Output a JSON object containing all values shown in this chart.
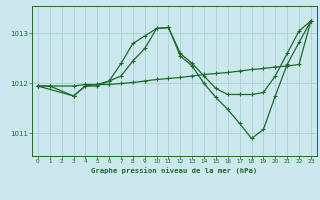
{
  "title": "Graphe pression niveau de la mer (hPa)",
  "background_color": "#cce8ec",
  "grid_color": "#aad0d8",
  "line_color": "#1a6b2a",
  "xlim": [
    -0.5,
    23.5
  ],
  "ylim": [
    1010.55,
    1013.55
  ],
  "yticks": [
    1011,
    1012,
    1013
  ],
  "xticks": [
    0,
    1,
    2,
    3,
    4,
    5,
    6,
    7,
    8,
    9,
    10,
    11,
    12,
    13,
    14,
    15,
    16,
    17,
    18,
    19,
    20,
    21,
    22,
    23
  ],
  "series1_x": [
    0,
    1,
    3,
    4,
    5,
    6,
    7,
    8,
    9,
    10,
    11,
    12,
    13,
    14,
    15,
    16,
    17,
    18,
    19,
    20,
    21,
    22,
    23
  ],
  "series1_y": [
    1011.95,
    1011.95,
    1011.95,
    1011.98,
    1011.98,
    1012.05,
    1012.15,
    1012.45,
    1012.7,
    1013.1,
    1013.12,
    1012.6,
    1012.4,
    1012.15,
    1011.9,
    1011.78,
    1011.78,
    1011.78,
    1011.82,
    1012.15,
    1012.6,
    1013.05,
    1013.25
  ],
  "series2_x": [
    0,
    1,
    3,
    4,
    5,
    6,
    7,
    8,
    9,
    10,
    11,
    12,
    13,
    14,
    15,
    16,
    17,
    18,
    19,
    20,
    21,
    22,
    23
  ],
  "series2_y": [
    1011.95,
    1011.95,
    1011.75,
    1011.95,
    1011.95,
    1012.05,
    1012.4,
    1012.8,
    1012.95,
    1013.1,
    1013.12,
    1012.55,
    1012.35,
    1012.0,
    1011.72,
    1011.48,
    1011.2,
    1010.9,
    1011.08,
    1011.75,
    1012.38,
    1012.82,
    1013.25
  ],
  "series3_x": [
    0,
    3,
    4,
    5,
    6,
    7,
    8,
    9,
    10,
    11,
    12,
    13,
    14,
    15,
    16,
    17,
    18,
    19,
    20,
    21,
    22,
    23
  ],
  "series3_y": [
    1011.95,
    1011.75,
    1011.95,
    1011.98,
    1011.98,
    1012.0,
    1012.02,
    1012.05,
    1012.08,
    1012.1,
    1012.12,
    1012.15,
    1012.18,
    1012.2,
    1012.22,
    1012.25,
    1012.28,
    1012.3,
    1012.33,
    1012.35,
    1012.38,
    1013.25
  ]
}
